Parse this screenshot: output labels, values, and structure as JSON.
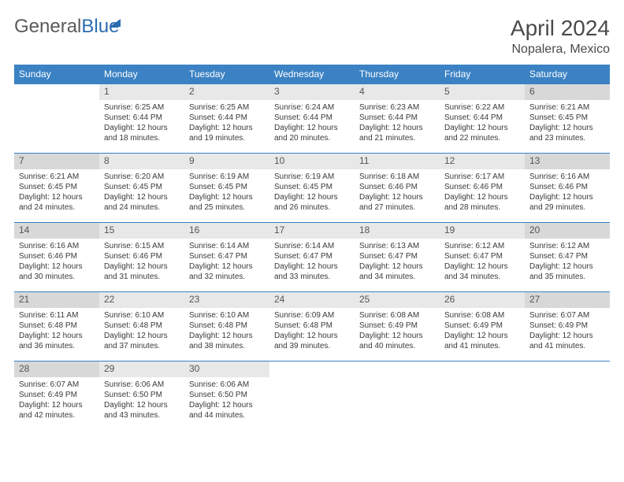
{
  "logo": {
    "part1": "General",
    "part2": "Blue"
  },
  "title": "April 2024",
  "subtitle": "Nopalera, Mexico",
  "day_headers": [
    "Sunday",
    "Monday",
    "Tuesday",
    "Wednesday",
    "Thursday",
    "Friday",
    "Saturday"
  ],
  "header_bg": "#3b82c4",
  "header_fg": "#ffffff",
  "weekday_num_bg": "#e8e8e8",
  "weekend_num_bg": "#d8d8d8",
  "border_color": "#3b82c4",
  "text_color": "#3a3a3a",
  "font_family": "Arial",
  "weeks": [
    [
      null,
      {
        "n": "1",
        "weekend": false,
        "sunrise": "Sunrise: 6:25 AM",
        "sunset": "Sunset: 6:44 PM",
        "d1": "Daylight: 12 hours",
        "d2": "and 18 minutes."
      },
      {
        "n": "2",
        "weekend": false,
        "sunrise": "Sunrise: 6:25 AM",
        "sunset": "Sunset: 6:44 PM",
        "d1": "Daylight: 12 hours",
        "d2": "and 19 minutes."
      },
      {
        "n": "3",
        "weekend": false,
        "sunrise": "Sunrise: 6:24 AM",
        "sunset": "Sunset: 6:44 PM",
        "d1": "Daylight: 12 hours",
        "d2": "and 20 minutes."
      },
      {
        "n": "4",
        "weekend": false,
        "sunrise": "Sunrise: 6:23 AM",
        "sunset": "Sunset: 6:44 PM",
        "d1": "Daylight: 12 hours",
        "d2": "and 21 minutes."
      },
      {
        "n": "5",
        "weekend": false,
        "sunrise": "Sunrise: 6:22 AM",
        "sunset": "Sunset: 6:44 PM",
        "d1": "Daylight: 12 hours",
        "d2": "and 22 minutes."
      },
      {
        "n": "6",
        "weekend": true,
        "sunrise": "Sunrise: 6:21 AM",
        "sunset": "Sunset: 6:45 PM",
        "d1": "Daylight: 12 hours",
        "d2": "and 23 minutes."
      }
    ],
    [
      {
        "n": "7",
        "weekend": true,
        "sunrise": "Sunrise: 6:21 AM",
        "sunset": "Sunset: 6:45 PM",
        "d1": "Daylight: 12 hours",
        "d2": "and 24 minutes."
      },
      {
        "n": "8",
        "weekend": false,
        "sunrise": "Sunrise: 6:20 AM",
        "sunset": "Sunset: 6:45 PM",
        "d1": "Daylight: 12 hours",
        "d2": "and 24 minutes."
      },
      {
        "n": "9",
        "weekend": false,
        "sunrise": "Sunrise: 6:19 AM",
        "sunset": "Sunset: 6:45 PM",
        "d1": "Daylight: 12 hours",
        "d2": "and 25 minutes."
      },
      {
        "n": "10",
        "weekend": false,
        "sunrise": "Sunrise: 6:19 AM",
        "sunset": "Sunset: 6:45 PM",
        "d1": "Daylight: 12 hours",
        "d2": "and 26 minutes."
      },
      {
        "n": "11",
        "weekend": false,
        "sunrise": "Sunrise: 6:18 AM",
        "sunset": "Sunset: 6:46 PM",
        "d1": "Daylight: 12 hours",
        "d2": "and 27 minutes."
      },
      {
        "n": "12",
        "weekend": false,
        "sunrise": "Sunrise: 6:17 AM",
        "sunset": "Sunset: 6:46 PM",
        "d1": "Daylight: 12 hours",
        "d2": "and 28 minutes."
      },
      {
        "n": "13",
        "weekend": true,
        "sunrise": "Sunrise: 6:16 AM",
        "sunset": "Sunset: 6:46 PM",
        "d1": "Daylight: 12 hours",
        "d2": "and 29 minutes."
      }
    ],
    [
      {
        "n": "14",
        "weekend": true,
        "sunrise": "Sunrise: 6:16 AM",
        "sunset": "Sunset: 6:46 PM",
        "d1": "Daylight: 12 hours",
        "d2": "and 30 minutes."
      },
      {
        "n": "15",
        "weekend": false,
        "sunrise": "Sunrise: 6:15 AM",
        "sunset": "Sunset: 6:46 PM",
        "d1": "Daylight: 12 hours",
        "d2": "and 31 minutes."
      },
      {
        "n": "16",
        "weekend": false,
        "sunrise": "Sunrise: 6:14 AM",
        "sunset": "Sunset: 6:47 PM",
        "d1": "Daylight: 12 hours",
        "d2": "and 32 minutes."
      },
      {
        "n": "17",
        "weekend": false,
        "sunrise": "Sunrise: 6:14 AM",
        "sunset": "Sunset: 6:47 PM",
        "d1": "Daylight: 12 hours",
        "d2": "and 33 minutes."
      },
      {
        "n": "18",
        "weekend": false,
        "sunrise": "Sunrise: 6:13 AM",
        "sunset": "Sunset: 6:47 PM",
        "d1": "Daylight: 12 hours",
        "d2": "and 34 minutes."
      },
      {
        "n": "19",
        "weekend": false,
        "sunrise": "Sunrise: 6:12 AM",
        "sunset": "Sunset: 6:47 PM",
        "d1": "Daylight: 12 hours",
        "d2": "and 34 minutes."
      },
      {
        "n": "20",
        "weekend": true,
        "sunrise": "Sunrise: 6:12 AM",
        "sunset": "Sunset: 6:47 PM",
        "d1": "Daylight: 12 hours",
        "d2": "and 35 minutes."
      }
    ],
    [
      {
        "n": "21",
        "weekend": true,
        "sunrise": "Sunrise: 6:11 AM",
        "sunset": "Sunset: 6:48 PM",
        "d1": "Daylight: 12 hours",
        "d2": "and 36 minutes."
      },
      {
        "n": "22",
        "weekend": false,
        "sunrise": "Sunrise: 6:10 AM",
        "sunset": "Sunset: 6:48 PM",
        "d1": "Daylight: 12 hours",
        "d2": "and 37 minutes."
      },
      {
        "n": "23",
        "weekend": false,
        "sunrise": "Sunrise: 6:10 AM",
        "sunset": "Sunset: 6:48 PM",
        "d1": "Daylight: 12 hours",
        "d2": "and 38 minutes."
      },
      {
        "n": "24",
        "weekend": false,
        "sunrise": "Sunrise: 6:09 AM",
        "sunset": "Sunset: 6:48 PM",
        "d1": "Daylight: 12 hours",
        "d2": "and 39 minutes."
      },
      {
        "n": "25",
        "weekend": false,
        "sunrise": "Sunrise: 6:08 AM",
        "sunset": "Sunset: 6:49 PM",
        "d1": "Daylight: 12 hours",
        "d2": "and 40 minutes."
      },
      {
        "n": "26",
        "weekend": false,
        "sunrise": "Sunrise: 6:08 AM",
        "sunset": "Sunset: 6:49 PM",
        "d1": "Daylight: 12 hours",
        "d2": "and 41 minutes."
      },
      {
        "n": "27",
        "weekend": true,
        "sunrise": "Sunrise: 6:07 AM",
        "sunset": "Sunset: 6:49 PM",
        "d1": "Daylight: 12 hours",
        "d2": "and 41 minutes."
      }
    ],
    [
      {
        "n": "28",
        "weekend": true,
        "sunrise": "Sunrise: 6:07 AM",
        "sunset": "Sunset: 6:49 PM",
        "d1": "Daylight: 12 hours",
        "d2": "and 42 minutes."
      },
      {
        "n": "29",
        "weekend": false,
        "sunrise": "Sunrise: 6:06 AM",
        "sunset": "Sunset: 6:50 PM",
        "d1": "Daylight: 12 hours",
        "d2": "and 43 minutes."
      },
      {
        "n": "30",
        "weekend": false,
        "sunrise": "Sunrise: 6:06 AM",
        "sunset": "Sunset: 6:50 PM",
        "d1": "Daylight: 12 hours",
        "d2": "and 44 minutes."
      },
      null,
      null,
      null,
      null
    ]
  ]
}
